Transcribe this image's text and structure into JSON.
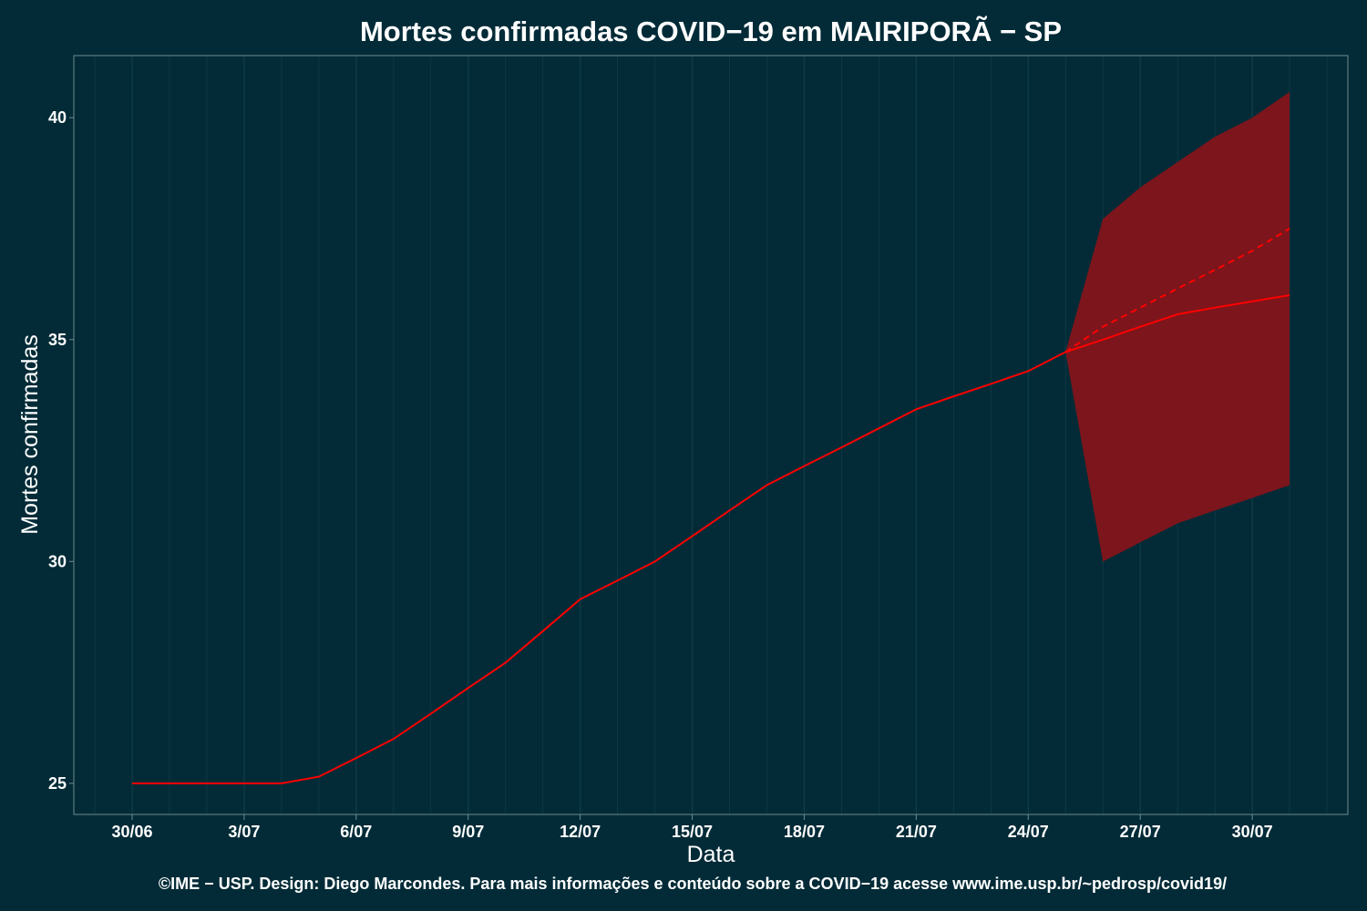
{
  "chart_data": {
    "type": "line",
    "title": "Mortes confirmadas COVID−19 em MAIRIPORÃ − SP",
    "xlabel": "Data",
    "ylabel": "Mortes confirmadas",
    "caption": "©IME − USP. Design: Diego Marcondes. Para mais informações e conteúdo sobre a COVID−19 acesse www.ime.usp.br/~pedrosp/covid19/",
    "x_tick_labels": [
      "30/06",
      "3/07",
      "6/07",
      "9/07",
      "12/07",
      "15/07",
      "18/07",
      "21/07",
      "24/07",
      "27/07",
      "30/07"
    ],
    "y_ticks": [
      25,
      30,
      35,
      40
    ],
    "ylim": [
      24.3,
      41.4
    ],
    "grid": "vertical",
    "series": [
      {
        "role": "observed",
        "x": [
          "2020-06-30",
          "2020-07-01",
          "2020-07-02",
          "2020-07-03",
          "2020-07-04",
          "2020-07-05",
          "2020-07-06",
          "2020-07-07",
          "2020-07-08",
          "2020-07-09",
          "2020-07-10",
          "2020-07-11",
          "2020-07-12",
          "2020-07-13",
          "2020-07-14",
          "2020-07-15",
          "2020-07-16",
          "2020-07-17",
          "2020-07-18",
          "2020-07-19",
          "2020-07-20",
          "2020-07-21",
          "2020-07-22",
          "2020-07-23",
          "2020-07-24",
          "2020-07-25"
        ],
        "y": [
          25,
          25,
          25,
          25,
          25,
          25.15,
          25.57,
          26.0,
          26.57,
          27.15,
          27.72,
          28.43,
          29.15,
          29.57,
          30.0,
          30.57,
          31.15,
          31.72,
          32.15,
          32.57,
          33.0,
          33.43,
          33.72,
          34.0,
          34.29,
          34.72
        ]
      },
      {
        "role": "forecast",
        "x": [
          "2020-07-25",
          "2020-07-26",
          "2020-07-27",
          "2020-07-28",
          "2020-07-29",
          "2020-07-30",
          "2020-07-31"
        ],
        "y": [
          34.72,
          35.0,
          35.29,
          35.57,
          35.72,
          35.86,
          36.0
        ]
      },
      {
        "role": "forecast-trend",
        "x": [
          "2020-07-25",
          "2020-07-26",
          "2020-07-27",
          "2020-07-28",
          "2020-07-29",
          "2020-07-30",
          "2020-07-31"
        ],
        "y": [
          34.72,
          35.29,
          35.72,
          36.15,
          36.57,
          37.0,
          37.5
        ]
      }
    ],
    "band": {
      "x": [
        "2020-07-25",
        "2020-07-26",
        "2020-07-27",
        "2020-07-28",
        "2020-07-29",
        "2020-07-30",
        "2020-07-31"
      ],
      "lower": [
        34.72,
        30.0,
        30.43,
        30.86,
        31.15,
        31.43,
        31.72
      ],
      "upper": [
        34.72,
        37.72,
        38.43,
        39.0,
        39.57,
        40.0,
        40.58
      ]
    },
    "colors": {
      "background": "#022b37",
      "line": "#ff0000",
      "band": "#7d151c",
      "grid": "#0e3b46",
      "frame": "#6c8b92"
    }
  }
}
